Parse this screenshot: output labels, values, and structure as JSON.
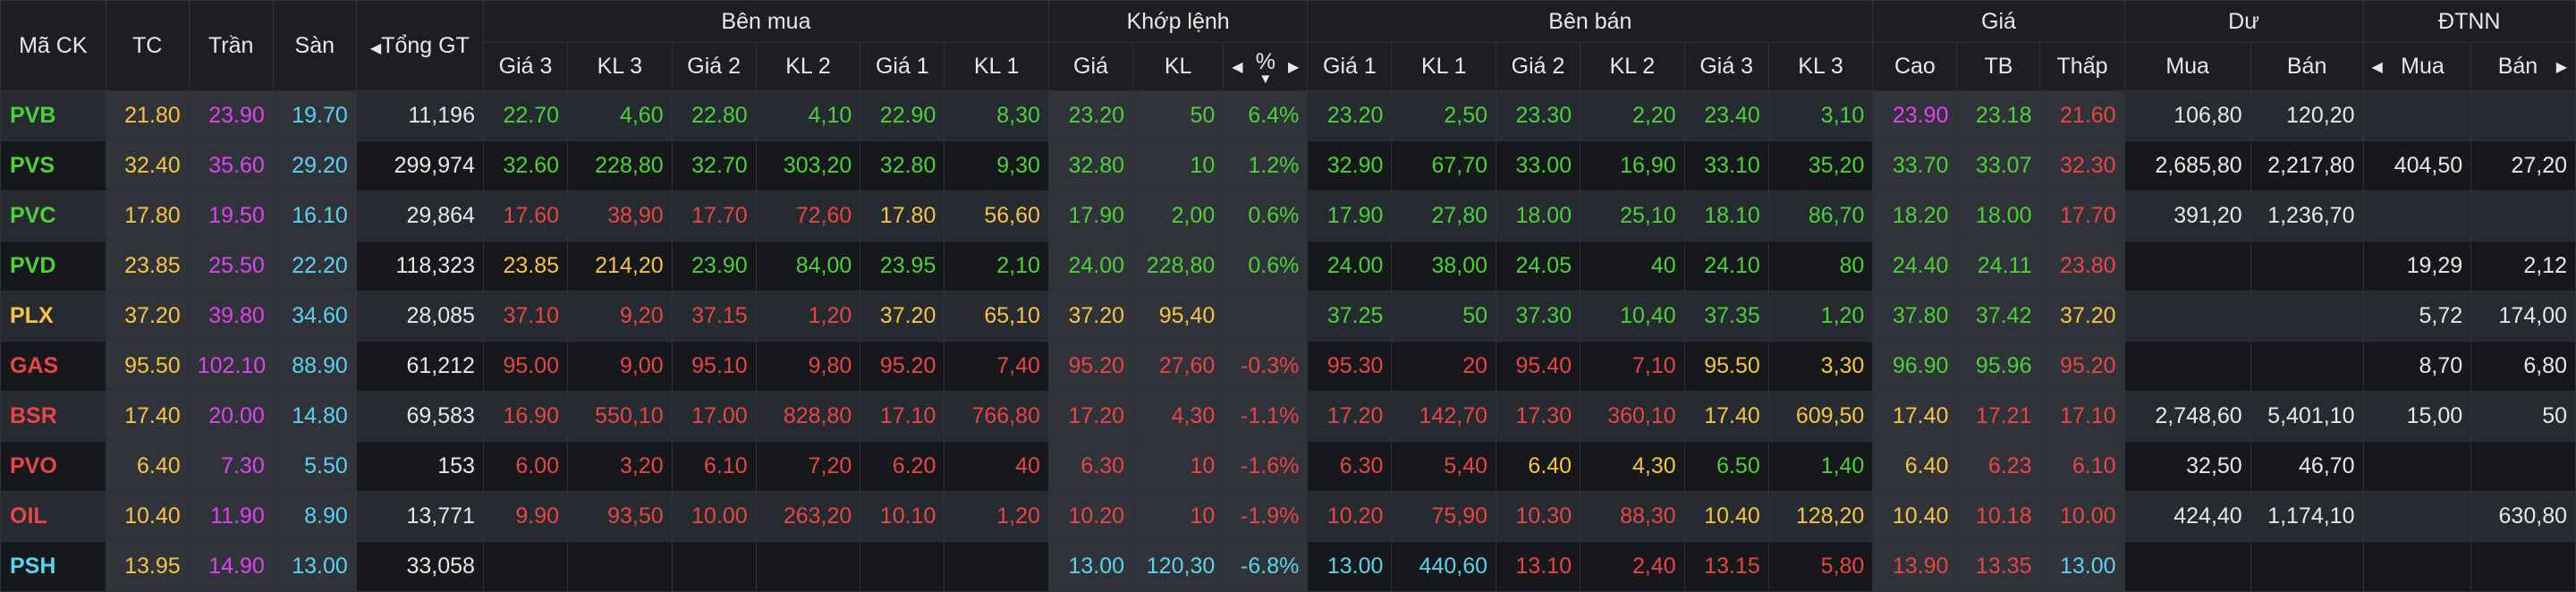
{
  "headers": {
    "symbol": "Mã CK",
    "ref": "TC",
    "ceil": "Trần",
    "floor": "Sàn",
    "total": "Tổng GT",
    "bid_group": "Bên mua",
    "match_group": "Khớp lệnh",
    "ask_group": "Bên bán",
    "price_group": "Giá",
    "remain_group": "Dư",
    "foreign_group": "ĐTNN",
    "bid_cols": [
      "Giá 3",
      "KL 3",
      "Giá 2",
      "KL 2",
      "Giá 1",
      "KL 1"
    ],
    "match_cols": [
      "Giá",
      "KL",
      "%"
    ],
    "ask_cols": [
      "Giá 1",
      "KL 1",
      "Giá 2",
      "KL 2",
      "Giá 3",
      "KL 3"
    ],
    "price_cols": [
      "Cao",
      "TB",
      "Thấp"
    ],
    "remain_cols": [
      "Mua",
      "Bán"
    ],
    "foreign_cols": [
      "Mua",
      "Bán"
    ]
  },
  "icons": {
    "left": "caret-left-icon",
    "right": "caret-right-icon",
    "sort": "sort-down-icon"
  },
  "colors": {
    "up": "#4cd137",
    "down": "#e84545",
    "ref": "#f5c542",
    "ceil": "#dd44ee",
    "floor": "#5ad3f0",
    "white": "#e8e8e8"
  },
  "rows": [
    {
      "symbol": "PVB",
      "sym_c": "up",
      "ref": "21.80",
      "ceil": "23.90",
      "floor": "19.70",
      "total": "11,196",
      "bid": [
        [
          "22.70",
          "up"
        ],
        [
          "4,60",
          "up"
        ],
        [
          "22.80",
          "up"
        ],
        [
          "4,10",
          "up"
        ],
        [
          "22.90",
          "up"
        ],
        [
          "8,30",
          "up"
        ]
      ],
      "match": [
        [
          "23.20",
          "up"
        ],
        [
          "50",
          "up"
        ],
        [
          "6.4%",
          "up"
        ]
      ],
      "ask": [
        [
          "23.20",
          "up"
        ],
        [
          "2,50",
          "up"
        ],
        [
          "23.30",
          "up"
        ],
        [
          "2,20",
          "up"
        ],
        [
          "23.40",
          "up"
        ],
        [
          "3,10",
          "up"
        ]
      ],
      "price": [
        [
          "23.90",
          "ceil"
        ],
        [
          "23.18",
          "up"
        ],
        [
          "21.60",
          "down"
        ]
      ],
      "remain": [
        "106,80",
        "120,20"
      ],
      "foreign": [
        "",
        ""
      ]
    },
    {
      "symbol": "PVS",
      "sym_c": "up",
      "ref": "32.40",
      "ceil": "35.60",
      "floor": "29.20",
      "total": "299,974",
      "bid": [
        [
          "32.60",
          "up"
        ],
        [
          "228,80",
          "up"
        ],
        [
          "32.70",
          "up"
        ],
        [
          "303,20",
          "up"
        ],
        [
          "32.80",
          "up"
        ],
        [
          "9,30",
          "up"
        ]
      ],
      "match": [
        [
          "32.80",
          "up"
        ],
        [
          "10",
          "up"
        ],
        [
          "1.2%",
          "up"
        ]
      ],
      "ask": [
        [
          "32.90",
          "up"
        ],
        [
          "67,70",
          "up"
        ],
        [
          "33.00",
          "up"
        ],
        [
          "16,90",
          "up"
        ],
        [
          "33.10",
          "up"
        ],
        [
          "35,20",
          "up"
        ]
      ],
      "price": [
        [
          "33.70",
          "up"
        ],
        [
          "33.07",
          "up"
        ],
        [
          "32.30",
          "down"
        ]
      ],
      "remain": [
        "2,685,80",
        "2,217,80"
      ],
      "foreign": [
        "404,50",
        "27,20"
      ]
    },
    {
      "symbol": "PVC",
      "sym_c": "up",
      "ref": "17.80",
      "ceil": "19.50",
      "floor": "16.10",
      "total": "29,864",
      "bid": [
        [
          "17.60",
          "down"
        ],
        [
          "38,90",
          "down"
        ],
        [
          "17.70",
          "down"
        ],
        [
          "72,60",
          "down"
        ],
        [
          "17.80",
          "ref"
        ],
        [
          "56,60",
          "ref"
        ]
      ],
      "match": [
        [
          "17.90",
          "up"
        ],
        [
          "2,00",
          "up"
        ],
        [
          "0.6%",
          "up"
        ]
      ],
      "ask": [
        [
          "17.90",
          "up"
        ],
        [
          "27,80",
          "up"
        ],
        [
          "18.00",
          "up"
        ],
        [
          "25,10",
          "up"
        ],
        [
          "18.10",
          "up"
        ],
        [
          "86,70",
          "up"
        ]
      ],
      "price": [
        [
          "18.20",
          "up"
        ],
        [
          "18.00",
          "up"
        ],
        [
          "17.70",
          "down"
        ]
      ],
      "remain": [
        "391,20",
        "1,236,70"
      ],
      "foreign": [
        "",
        ""
      ]
    },
    {
      "symbol": "PVD",
      "sym_c": "up",
      "ref": "23.85",
      "ceil": "25.50",
      "floor": "22.20",
      "total": "118,323",
      "bid": [
        [
          "23.85",
          "ref"
        ],
        [
          "214,20",
          "ref"
        ],
        [
          "23.90",
          "up"
        ],
        [
          "84,00",
          "up"
        ],
        [
          "23.95",
          "up"
        ],
        [
          "2,10",
          "up"
        ]
      ],
      "match": [
        [
          "24.00",
          "up"
        ],
        [
          "228,80",
          "up"
        ],
        [
          "0.6%",
          "up"
        ]
      ],
      "ask": [
        [
          "24.00",
          "up"
        ],
        [
          "38,00",
          "up"
        ],
        [
          "24.05",
          "up"
        ],
        [
          "40",
          "up"
        ],
        [
          "24.10",
          "up"
        ],
        [
          "80",
          "up"
        ]
      ],
      "price": [
        [
          "24.40",
          "up"
        ],
        [
          "24.11",
          "up"
        ],
        [
          "23.80",
          "down"
        ]
      ],
      "remain": [
        "",
        ""
      ],
      "foreign": [
        "19,29",
        "2,12"
      ]
    },
    {
      "symbol": "PLX",
      "sym_c": "ref",
      "ref": "37.20",
      "ceil": "39.80",
      "floor": "34.60",
      "total": "28,085",
      "bid": [
        [
          "37.10",
          "down"
        ],
        [
          "9,20",
          "down"
        ],
        [
          "37.15",
          "down"
        ],
        [
          "1,20",
          "down"
        ],
        [
          "37.20",
          "ref"
        ],
        [
          "65,10",
          "ref"
        ]
      ],
      "match": [
        [
          "37.20",
          "ref"
        ],
        [
          "95,40",
          "ref"
        ],
        [
          "",
          "ref"
        ]
      ],
      "ask": [
        [
          "37.25",
          "up"
        ],
        [
          "50",
          "up"
        ],
        [
          "37.30",
          "up"
        ],
        [
          "10,40",
          "up"
        ],
        [
          "37.35",
          "up"
        ],
        [
          "1,20",
          "up"
        ]
      ],
      "price": [
        [
          "37.80",
          "up"
        ],
        [
          "37.42",
          "up"
        ],
        [
          "37.20",
          "ref"
        ]
      ],
      "remain": [
        "",
        ""
      ],
      "foreign": [
        "5,72",
        "174,00"
      ]
    },
    {
      "symbol": "GAS",
      "sym_c": "down",
      "ref": "95.50",
      "ceil": "102.10",
      "floor": "88.90",
      "total": "61,212",
      "bid": [
        [
          "95.00",
          "down"
        ],
        [
          "9,00",
          "down"
        ],
        [
          "95.10",
          "down"
        ],
        [
          "9,80",
          "down"
        ],
        [
          "95.20",
          "down"
        ],
        [
          "7,40",
          "down"
        ]
      ],
      "match": [
        [
          "95.20",
          "down"
        ],
        [
          "27,60",
          "down"
        ],
        [
          "-0.3%",
          "down"
        ]
      ],
      "ask": [
        [
          "95.30",
          "down"
        ],
        [
          "20",
          "down"
        ],
        [
          "95.40",
          "down"
        ],
        [
          "7,10",
          "down"
        ],
        [
          "95.50",
          "ref"
        ],
        [
          "3,30",
          "ref"
        ]
      ],
      "price": [
        [
          "96.90",
          "up"
        ],
        [
          "95.96",
          "up"
        ],
        [
          "95.20",
          "down"
        ]
      ],
      "remain": [
        "",
        ""
      ],
      "foreign": [
        "8,70",
        "6,80"
      ]
    },
    {
      "symbol": "BSR",
      "sym_c": "down",
      "ref": "17.40",
      "ceil": "20.00",
      "floor": "14.80",
      "total": "69,583",
      "bid": [
        [
          "16.90",
          "down"
        ],
        [
          "550,10",
          "down"
        ],
        [
          "17.00",
          "down"
        ],
        [
          "828,80",
          "down"
        ],
        [
          "17.10",
          "down"
        ],
        [
          "766,80",
          "down"
        ]
      ],
      "match": [
        [
          "17.20",
          "down"
        ],
        [
          "4,30",
          "down"
        ],
        [
          "-1.1%",
          "down"
        ]
      ],
      "ask": [
        [
          "17.20",
          "down"
        ],
        [
          "142,70",
          "down"
        ],
        [
          "17.30",
          "down"
        ],
        [
          "360,10",
          "down"
        ],
        [
          "17.40",
          "ref"
        ],
        [
          "609,50",
          "ref"
        ]
      ],
      "price": [
        [
          "17.40",
          "ref"
        ],
        [
          "17.21",
          "down"
        ],
        [
          "17.10",
          "down"
        ]
      ],
      "remain": [
        "2,748,60",
        "5,401,10"
      ],
      "foreign": [
        "15,00",
        "50"
      ]
    },
    {
      "symbol": "PVO",
      "sym_c": "down",
      "ref": "6.40",
      "ceil": "7.30",
      "floor": "5.50",
      "total": "153",
      "bid": [
        [
          "6.00",
          "down"
        ],
        [
          "3,20",
          "down"
        ],
        [
          "6.10",
          "down"
        ],
        [
          "7,20",
          "down"
        ],
        [
          "6.20",
          "down"
        ],
        [
          "40",
          "down"
        ]
      ],
      "match": [
        [
          "6.30",
          "down"
        ],
        [
          "10",
          "down"
        ],
        [
          "-1.6%",
          "down"
        ]
      ],
      "ask": [
        [
          "6.30",
          "down"
        ],
        [
          "5,40",
          "down"
        ],
        [
          "6.40",
          "ref"
        ],
        [
          "4,30",
          "ref"
        ],
        [
          "6.50",
          "up"
        ],
        [
          "1,40",
          "up"
        ]
      ],
      "price": [
        [
          "6.40",
          "ref"
        ],
        [
          "6.23",
          "down"
        ],
        [
          "6.10",
          "down"
        ]
      ],
      "remain": [
        "32,50",
        "46,70"
      ],
      "foreign": [
        "",
        ""
      ]
    },
    {
      "symbol": "OIL",
      "sym_c": "down",
      "ref": "10.40",
      "ceil": "11.90",
      "floor": "8.90",
      "total": "13,771",
      "bid": [
        [
          "9.90",
          "down"
        ],
        [
          "93,50",
          "down"
        ],
        [
          "10.00",
          "down"
        ],
        [
          "263,20",
          "down"
        ],
        [
          "10.10",
          "down"
        ],
        [
          "1,20",
          "down"
        ]
      ],
      "match": [
        [
          "10.20",
          "down"
        ],
        [
          "10",
          "down"
        ],
        [
          "-1.9%",
          "down"
        ]
      ],
      "ask": [
        [
          "10.20",
          "down"
        ],
        [
          "75,90",
          "down"
        ],
        [
          "10.30",
          "down"
        ],
        [
          "88,30",
          "down"
        ],
        [
          "10.40",
          "ref"
        ],
        [
          "128,20",
          "ref"
        ]
      ],
      "price": [
        [
          "10.40",
          "ref"
        ],
        [
          "10.18",
          "down"
        ],
        [
          "10.00",
          "down"
        ]
      ],
      "remain": [
        "424,40",
        "1,174,10"
      ],
      "foreign": [
        "",
        "630,80"
      ]
    },
    {
      "symbol": "PSH",
      "sym_c": "floor",
      "ref": "13.95",
      "ceil": "14.90",
      "floor": "13.00",
      "total": "33,058",
      "bid": [
        [
          "",
          "down"
        ],
        [
          "",
          "down"
        ],
        [
          "",
          "down"
        ],
        [
          "",
          "down"
        ],
        [
          "",
          "down"
        ],
        [
          "",
          "down"
        ]
      ],
      "match": [
        [
          "13.00",
          "floor"
        ],
        [
          "120,30",
          "floor"
        ],
        [
          "-6.8%",
          "floor"
        ]
      ],
      "ask": [
        [
          "13.00",
          "floor"
        ],
        [
          "440,60",
          "floor"
        ],
        [
          "13.10",
          "down"
        ],
        [
          "2,40",
          "down"
        ],
        [
          "13.15",
          "down"
        ],
        [
          "5,80",
          "down"
        ]
      ],
      "price": [
        [
          "13.90",
          "down"
        ],
        [
          "13.35",
          "down"
        ],
        [
          "13.00",
          "floor"
        ]
      ],
      "remain": [
        "",
        ""
      ],
      "foreign": [
        "",
        ""
      ]
    }
  ]
}
